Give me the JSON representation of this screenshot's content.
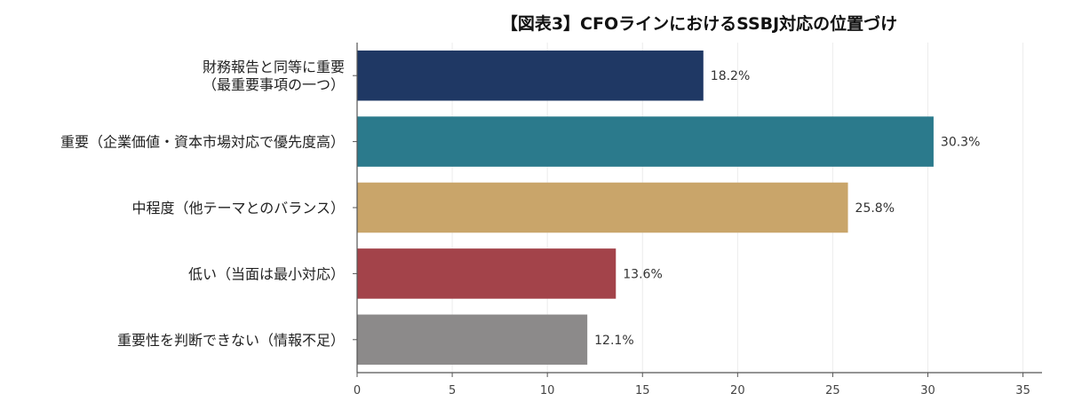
{
  "chart_data": {
    "type": "bar",
    "orientation": "horizontal",
    "title": "【図表3】CFOラインにおけるSSBJ対応の位置づけ",
    "categories": [
      [
        "財務報告と同等に重要",
        "（最重要事項の一つ）"
      ],
      [
        "重要（企業価値・資本市場対応で優先度高）"
      ],
      [
        "中程度（他テーマとのバランス）"
      ],
      [
        "低い（当面は最小対応）"
      ],
      [
        "重要性を判断できない（情報不足）"
      ]
    ],
    "values": [
      18.2,
      30.3,
      25.8,
      13.6,
      12.1
    ],
    "data_labels": [
      "18.2%",
      "30.3%",
      "25.8%",
      "13.6%",
      "12.1%"
    ],
    "colors": [
      "#1f3864",
      "#2b7a8c",
      "#c9a56a",
      "#a3434a",
      "#8c8a8a"
    ],
    "xlim": [
      0,
      36
    ],
    "xticks": [
      0,
      5,
      10,
      15,
      20,
      25,
      30,
      35
    ],
    "xlabel": "",
    "ylabel": "",
    "grid": "vertical",
    "legend": "none"
  }
}
